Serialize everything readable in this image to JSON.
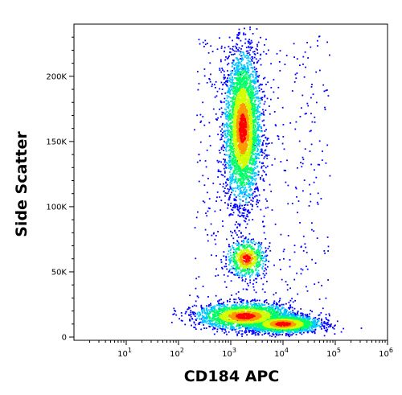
{
  "chart_data": {
    "type": "scatter",
    "style": "density-dot-plot",
    "xlabel": "CD184 APC",
    "ylabel": "Side Scatter",
    "x_scale": "log",
    "xlim": [
      1,
      1000000
    ],
    "ylim": [
      0,
      240000
    ],
    "x_ticks": [
      {
        "value": 10,
        "base": "10",
        "exp": "1"
      },
      {
        "value": 100,
        "base": "10",
        "exp": "2"
      },
      {
        "value": 1000,
        "base": "10",
        "exp": "3"
      },
      {
        "value": 10000,
        "base": "10",
        "exp": "4"
      },
      {
        "value": 100000,
        "base": "10",
        "exp": "5"
      },
      {
        "value": 1000000,
        "base": "10",
        "exp": "6"
      }
    ],
    "y_ticks": [
      {
        "value": 0,
        "label": "0"
      },
      {
        "value": 50000,
        "label": "50K"
      },
      {
        "value": 100000,
        "label": "100K"
      },
      {
        "value": 150000,
        "label": "150K"
      },
      {
        "value": 200000,
        "label": "200K"
      }
    ],
    "populations": [
      {
        "x_center": 1700,
        "y_center": 160000,
        "x_spread_decades": 0.17,
        "y_spread": 28000,
        "count": 3800
      },
      {
        "x_center": 2000,
        "y_center": 60000,
        "x_spread_decades": 0.18,
        "y_spread": 7000,
        "count": 700
      },
      {
        "x_center": 1900,
        "y_center": 16000,
        "x_spread_decades": 0.45,
        "y_spread": 5000,
        "count": 2200
      },
      {
        "x_center": 10000,
        "y_center": 10000,
        "x_spread_decades": 0.35,
        "y_spread": 3500,
        "count": 2000
      }
    ],
    "colormap": [
      "#0000ff",
      "#00c8ff",
      "#00ff66",
      "#d2ff00",
      "#ff9900",
      "#ff0000"
    ],
    "grid": false,
    "legend": "none"
  }
}
